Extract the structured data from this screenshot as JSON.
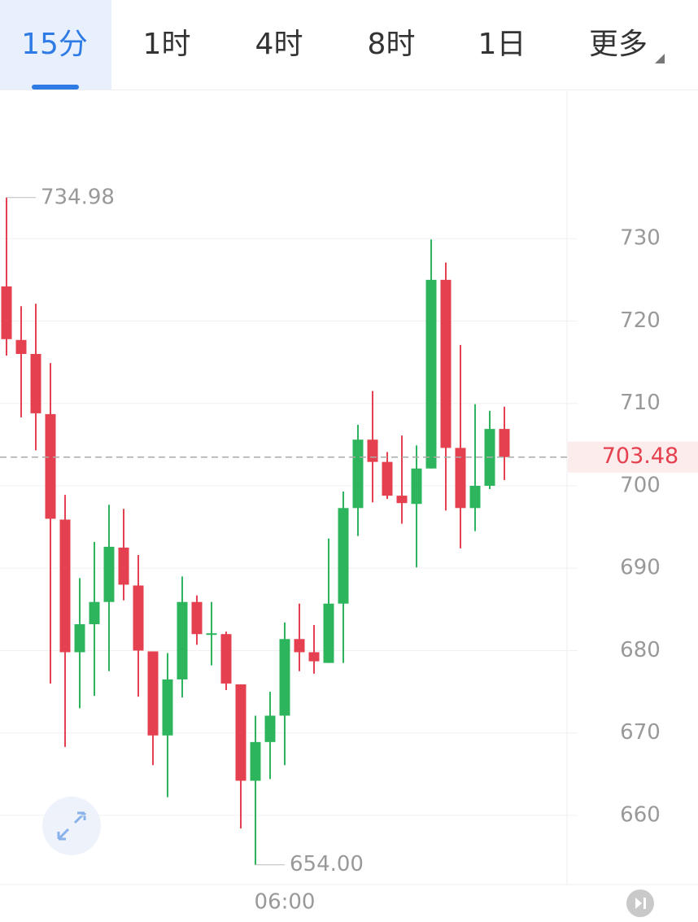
{
  "tabs": [
    "15分",
    "1时",
    "4时",
    "8时",
    "1日",
    "更多"
  ],
  "selected_tab": 0,
  "chart_data": {
    "type": "candlestick",
    "categories": [
      null,
      null,
      null,
      null,
      null,
      null,
      null,
      null,
      null,
      null,
      null,
      null,
      null,
      null,
      null,
      null,
      null,
      null,
      null,
      "06:00",
      null,
      null,
      null,
      null,
      null,
      null,
      null,
      null,
      null,
      null,
      null,
      null,
      null,
      null,
      null
    ],
    "open": [
      724.2,
      717.7,
      716.0,
      708.7,
      695.9,
      679.8,
      683.2,
      685.9,
      692.5,
      687.9,
      679.9,
      669.7,
      676.5,
      685.9,
      682.0,
      682.0,
      675.9,
      664.2,
      668.9,
      672.1,
      681.4,
      679.8,
      678.5,
      685.7,
      697.3,
      705.6,
      702.9,
      698.8,
      697.8,
      702.1,
      725.0,
      704.6,
      697.3,
      700.0,
      706.9
    ],
    "high": [
      734.98,
      721.8,
      722.1,
      714.9,
      698.9,
      688.8,
      693.2,
      697.7,
      697.2,
      691.6,
      679.9,
      679.7,
      689.0,
      686.7,
      685.9,
      682.3,
      675.9,
      672.1,
      675.0,
      683.4,
      685.7,
      683.1,
      693.6,
      699.3,
      707.4,
      711.5,
      704.1,
      706.1,
      704.9,
      729.9,
      727.1,
      717.1,
      709.9,
      709.1,
      709.6
    ],
    "low": [
      715.8,
      708.3,
      704.3,
      676.0,
      668.3,
      673.0,
      674.5,
      677.5,
      686.1,
      674.4,
      666.1,
      662.2,
      674.3,
      680.7,
      678.2,
      675.2,
      658.4,
      654.0,
      664.4,
      666.1,
      677.5,
      677.2,
      678.5,
      678.5,
      693.9,
      698.0,
      698.4,
      695.4,
      690.1,
      702.1,
      697.0,
      692.4,
      694.5,
      699.6,
      700.7
    ],
    "close": [
      717.8,
      716.0,
      708.8,
      696.0,
      679.8,
      683.2,
      685.9,
      692.6,
      688.0,
      680.0,
      669.7,
      676.5,
      685.9,
      682.0,
      682.1,
      676.0,
      664.2,
      668.9,
      672.1,
      681.4,
      679.8,
      678.7,
      685.7,
      697.3,
      705.6,
      702.9,
      698.8,
      697.9,
      702.1,
      725.0,
      704.6,
      697.3,
      700.0,
      706.9,
      703.48
    ],
    "up_color": "#2db55d",
    "down_color": "#e5404f",
    "ylim": [
      651.6,
      747.9
    ],
    "yticks": [
      660,
      670,
      680,
      690,
      700,
      710,
      720,
      730
    ],
    "grid": true,
    "high_marker": 734.98,
    "low_marker": {
      "value": 654,
      "label": "654.00"
    },
    "last_price": 703.48
  }
}
